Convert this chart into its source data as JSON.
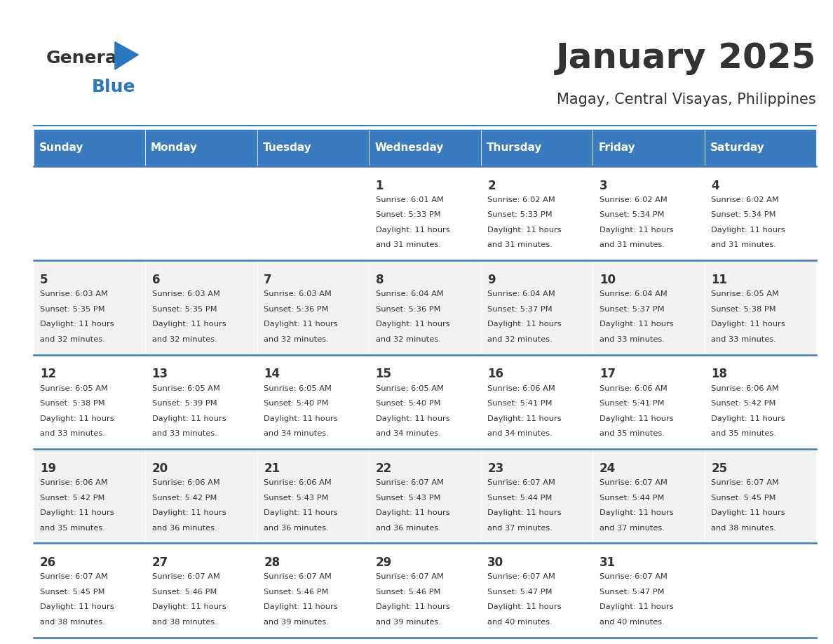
{
  "title": "January 2025",
  "subtitle": "Magay, Central Visayas, Philippines",
  "header_color": "#3a7abf",
  "header_text_color": "#ffffff",
  "cell_bg_even": "#f2f2f2",
  "cell_bg_odd": "#ffffff",
  "day_headers": [
    "Sunday",
    "Monday",
    "Tuesday",
    "Wednesday",
    "Thursday",
    "Friday",
    "Saturday"
  ],
  "days": [
    {
      "day": 1,
      "col": 3,
      "row": 0,
      "sunrise": "6:01 AM",
      "sunset": "5:33 PM",
      "daylight": "11 hours and 31 minutes."
    },
    {
      "day": 2,
      "col": 4,
      "row": 0,
      "sunrise": "6:02 AM",
      "sunset": "5:33 PM",
      "daylight": "11 hours and 31 minutes."
    },
    {
      "day": 3,
      "col": 5,
      "row": 0,
      "sunrise": "6:02 AM",
      "sunset": "5:34 PM",
      "daylight": "11 hours and 31 minutes."
    },
    {
      "day": 4,
      "col": 6,
      "row": 0,
      "sunrise": "6:02 AM",
      "sunset": "5:34 PM",
      "daylight": "11 hours and 31 minutes."
    },
    {
      "day": 5,
      "col": 0,
      "row": 1,
      "sunrise": "6:03 AM",
      "sunset": "5:35 PM",
      "daylight": "11 hours and 32 minutes."
    },
    {
      "day": 6,
      "col": 1,
      "row": 1,
      "sunrise": "6:03 AM",
      "sunset": "5:35 PM",
      "daylight": "11 hours and 32 minutes."
    },
    {
      "day": 7,
      "col": 2,
      "row": 1,
      "sunrise": "6:03 AM",
      "sunset": "5:36 PM",
      "daylight": "11 hours and 32 minutes."
    },
    {
      "day": 8,
      "col": 3,
      "row": 1,
      "sunrise": "6:04 AM",
      "sunset": "5:36 PM",
      "daylight": "11 hours and 32 minutes."
    },
    {
      "day": 9,
      "col": 4,
      "row": 1,
      "sunrise": "6:04 AM",
      "sunset": "5:37 PM",
      "daylight": "11 hours and 32 minutes."
    },
    {
      "day": 10,
      "col": 5,
      "row": 1,
      "sunrise": "6:04 AM",
      "sunset": "5:37 PM",
      "daylight": "11 hours and 33 minutes."
    },
    {
      "day": 11,
      "col": 6,
      "row": 1,
      "sunrise": "6:05 AM",
      "sunset": "5:38 PM",
      "daylight": "11 hours and 33 minutes."
    },
    {
      "day": 12,
      "col": 0,
      "row": 2,
      "sunrise": "6:05 AM",
      "sunset": "5:38 PM",
      "daylight": "11 hours and 33 minutes."
    },
    {
      "day": 13,
      "col": 1,
      "row": 2,
      "sunrise": "6:05 AM",
      "sunset": "5:39 PM",
      "daylight": "11 hours and 33 minutes."
    },
    {
      "day": 14,
      "col": 2,
      "row": 2,
      "sunrise": "6:05 AM",
      "sunset": "5:40 PM",
      "daylight": "11 hours and 34 minutes."
    },
    {
      "day": 15,
      "col": 3,
      "row": 2,
      "sunrise": "6:05 AM",
      "sunset": "5:40 PM",
      "daylight": "11 hours and 34 minutes."
    },
    {
      "day": 16,
      "col": 4,
      "row": 2,
      "sunrise": "6:06 AM",
      "sunset": "5:41 PM",
      "daylight": "11 hours and 34 minutes."
    },
    {
      "day": 17,
      "col": 5,
      "row": 2,
      "sunrise": "6:06 AM",
      "sunset": "5:41 PM",
      "daylight": "11 hours and 35 minutes."
    },
    {
      "day": 18,
      "col": 6,
      "row": 2,
      "sunrise": "6:06 AM",
      "sunset": "5:42 PM",
      "daylight": "11 hours and 35 minutes."
    },
    {
      "day": 19,
      "col": 0,
      "row": 3,
      "sunrise": "6:06 AM",
      "sunset": "5:42 PM",
      "daylight": "11 hours and 35 minutes."
    },
    {
      "day": 20,
      "col": 1,
      "row": 3,
      "sunrise": "6:06 AM",
      "sunset": "5:42 PM",
      "daylight": "11 hours and 36 minutes."
    },
    {
      "day": 21,
      "col": 2,
      "row": 3,
      "sunrise": "6:06 AM",
      "sunset": "5:43 PM",
      "daylight": "11 hours and 36 minutes."
    },
    {
      "day": 22,
      "col": 3,
      "row": 3,
      "sunrise": "6:07 AM",
      "sunset": "5:43 PM",
      "daylight": "11 hours and 36 minutes."
    },
    {
      "day": 23,
      "col": 4,
      "row": 3,
      "sunrise": "6:07 AM",
      "sunset": "5:44 PM",
      "daylight": "11 hours and 37 minutes."
    },
    {
      "day": 24,
      "col": 5,
      "row": 3,
      "sunrise": "6:07 AM",
      "sunset": "5:44 PM",
      "daylight": "11 hours and 37 minutes."
    },
    {
      "day": 25,
      "col": 6,
      "row": 3,
      "sunrise": "6:07 AM",
      "sunset": "5:45 PM",
      "daylight": "11 hours and 38 minutes."
    },
    {
      "day": 26,
      "col": 0,
      "row": 4,
      "sunrise": "6:07 AM",
      "sunset": "5:45 PM",
      "daylight": "11 hours and 38 minutes."
    },
    {
      "day": 27,
      "col": 1,
      "row": 4,
      "sunrise": "6:07 AM",
      "sunset": "5:46 PM",
      "daylight": "11 hours and 38 minutes."
    },
    {
      "day": 28,
      "col": 2,
      "row": 4,
      "sunrise": "6:07 AM",
      "sunset": "5:46 PM",
      "daylight": "11 hours and 39 minutes."
    },
    {
      "day": 29,
      "col": 3,
      "row": 4,
      "sunrise": "6:07 AM",
      "sunset": "5:46 PM",
      "daylight": "11 hours and 39 minutes."
    },
    {
      "day": 30,
      "col": 4,
      "row": 4,
      "sunrise": "6:07 AM",
      "sunset": "5:47 PM",
      "daylight": "11 hours and 40 minutes."
    },
    {
      "day": 31,
      "col": 5,
      "row": 4,
      "sunrise": "6:07 AM",
      "sunset": "5:47 PM",
      "daylight": "11 hours and 40 minutes."
    }
  ],
  "num_rows": 5,
  "logo_general_color": "#333333",
  "logo_blue_color": "#2878c0",
  "logo_triangle_color": "#2878c0",
  "divider_color": "#3a7abf",
  "text_color": "#333333"
}
